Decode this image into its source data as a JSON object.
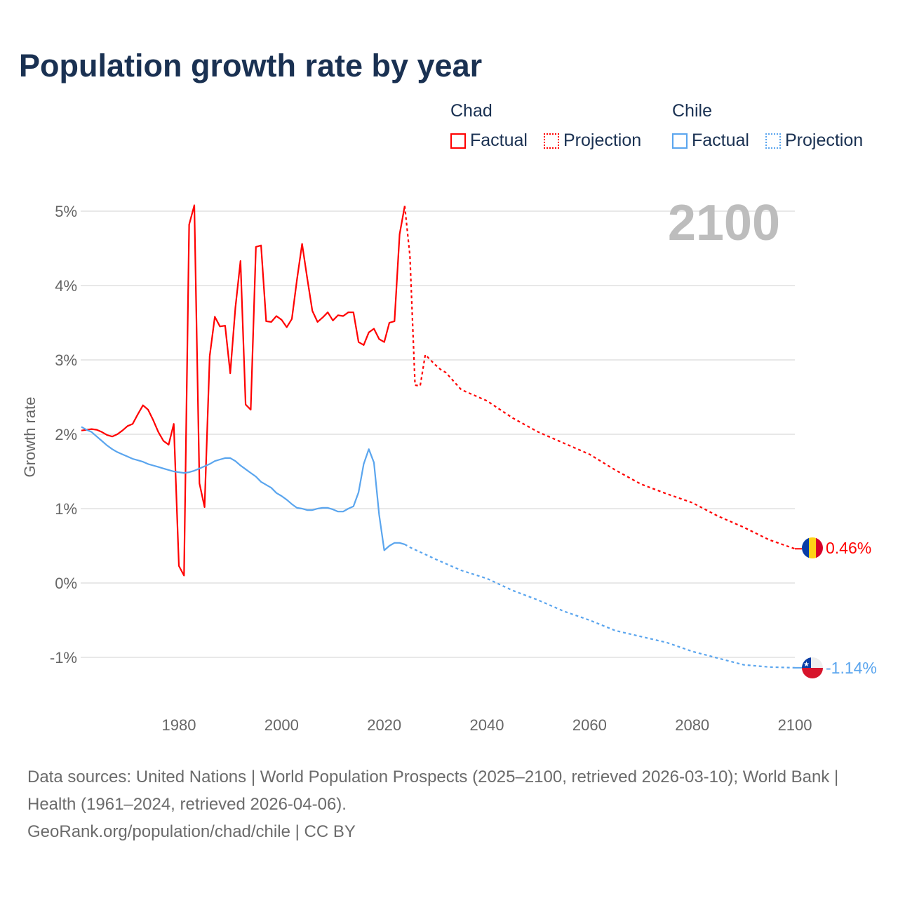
{
  "title": "Population growth rate by year",
  "legend": {
    "groups": [
      {
        "name": "Chad",
        "factual": "Factual",
        "projection": "Projection",
        "color": "#ff0000"
      },
      {
        "name": "Chile",
        "factual": "Factual",
        "projection": "Projection",
        "color": "#5aa5ee"
      }
    ]
  },
  "footer": {
    "sources": "Data sources: United Nations | World Population Prospects (2025–2100, retrieved 2026-03-10); World Bank | Health (1961–2024, retrieved 2026-04-06).",
    "credit": "GeoRank.org/population/chad/chile | CC BY"
  },
  "chart_data": {
    "type": "line",
    "title": "Population growth rate by year",
    "xlabel": "",
    "ylabel": "Growth rate",
    "xlim": [
      1961,
      2100
    ],
    "ylim": [
      -1.4,
      5.2
    ],
    "x_ticks": [
      1980,
      2000,
      2020,
      2040,
      2060,
      2080,
      2100
    ],
    "y_ticks": [
      {
        "v": 5,
        "label": "5%"
      },
      {
        "v": 4,
        "label": "4%"
      },
      {
        "v": 3,
        "label": "3%"
      },
      {
        "v": 2,
        "label": "2%"
      },
      {
        "v": 1,
        "label": "1%"
      },
      {
        "v": 0,
        "label": "0%"
      },
      {
        "v": -1,
        "label": "-1%"
      }
    ],
    "year_label": "2100",
    "grid": true,
    "legend_position": "top-right",
    "series": [
      {
        "name": "Chad",
        "kind": "Factual",
        "color": "#ff0000",
        "x": [
          1961,
          1962,
          1963,
          1964,
          1965,
          1966,
          1967,
          1968,
          1969,
          1970,
          1971,
          1972,
          1973,
          1974,
          1975,
          1976,
          1977,
          1978,
          1979,
          1980,
          1981,
          1982,
          1983,
          1984,
          1985,
          1986,
          1987,
          1988,
          1989,
          1990,
          1991,
          1992,
          1993,
          1994,
          1995,
          1996,
          1997,
          1998,
          1999,
          2000,
          2001,
          2002,
          2003,
          2004,
          2005,
          2006,
          2007,
          2008,
          2009,
          2010,
          2011,
          2012,
          2013,
          2014,
          2015,
          2016,
          2017,
          2018,
          2019,
          2020,
          2021,
          2022,
          2023,
          2024
        ],
        "y": [
          2.05,
          2.06,
          2.07,
          2.06,
          2.03,
          1.99,
          1.97,
          2.0,
          2.05,
          2.11,
          2.14,
          2.27,
          2.39,
          2.33,
          2.19,
          2.03,
          1.91,
          1.86,
          2.14,
          0.23,
          0.1,
          4.82,
          5.08,
          1.34,
          1.02,
          3.05,
          3.58,
          3.45,
          3.46,
          2.82,
          3.7,
          4.33,
          2.4,
          2.33,
          4.52,
          4.54,
          3.52,
          3.51,
          3.59,
          3.54,
          3.44,
          3.55,
          4.08,
          4.56,
          4.1,
          3.66,
          3.51,
          3.57,
          3.64,
          3.53,
          3.6,
          3.59,
          3.64,
          3.64,
          3.24,
          3.2,
          3.37,
          3.42,
          3.28,
          3.24,
          3.5,
          3.52,
          4.69,
          5.07
        ]
      },
      {
        "name": "Chad",
        "kind": "Projection",
        "color": "#ff0000",
        "x": [
          2024,
          2025,
          2026,
          2027,
          2028,
          2029,
          2030,
          2031,
          2032,
          2035,
          2040,
          2045,
          2050,
          2055,
          2060,
          2065,
          2070,
          2075,
          2080,
          2085,
          2090,
          2095,
          2100
        ],
        "y": [
          5.07,
          4.4,
          2.66,
          2.65,
          3.07,
          3.0,
          2.93,
          2.87,
          2.83,
          2.6,
          2.45,
          2.22,
          2.03,
          1.88,
          1.73,
          1.52,
          1.33,
          1.2,
          1.08,
          0.9,
          0.75,
          0.58,
          0.46
        ]
      },
      {
        "name": "Chile",
        "kind": "Factual",
        "color": "#5aa5ee",
        "x": [
          1961,
          1962,
          1963,
          1964,
          1965,
          1966,
          1967,
          1968,
          1969,
          1970,
          1971,
          1972,
          1973,
          1974,
          1975,
          1976,
          1977,
          1978,
          1979,
          1980,
          1981,
          1982,
          1983,
          1984,
          1985,
          1986,
          1987,
          1988,
          1989,
          1990,
          1991,
          1992,
          1993,
          1994,
          1995,
          1996,
          1997,
          1998,
          1999,
          2000,
          2001,
          2002,
          2003,
          2004,
          2005,
          2006,
          2007,
          2008,
          2009,
          2010,
          2011,
          2012,
          2013,
          2014,
          2015,
          2016,
          2017,
          2018,
          2019,
          2020,
          2021,
          2022,
          2023,
          2024
        ],
        "y": [
          2.1,
          2.06,
          2.03,
          1.97,
          1.91,
          1.85,
          1.8,
          1.76,
          1.73,
          1.7,
          1.67,
          1.65,
          1.63,
          1.6,
          1.58,
          1.56,
          1.54,
          1.52,
          1.5,
          1.49,
          1.48,
          1.49,
          1.51,
          1.54,
          1.57,
          1.6,
          1.64,
          1.66,
          1.68,
          1.68,
          1.64,
          1.58,
          1.53,
          1.48,
          1.43,
          1.36,
          1.32,
          1.28,
          1.21,
          1.17,
          1.12,
          1.06,
          1.01,
          1.0,
          0.98,
          0.98,
          1.0,
          1.01,
          1.01,
          0.99,
          0.96,
          0.96,
          1.0,
          1.03,
          1.22,
          1.6,
          1.8,
          1.62,
          0.92,
          0.44,
          0.5,
          0.54,
          0.54,
          0.52
        ]
      },
      {
        "name": "Chile",
        "kind": "Projection",
        "color": "#5aa5ee",
        "x": [
          2024,
          2025,
          2030,
          2035,
          2040,
          2045,
          2050,
          2055,
          2060,
          2065,
          2070,
          2075,
          2080,
          2085,
          2090,
          2095,
          2100
        ],
        "y": [
          0.52,
          0.48,
          0.32,
          0.17,
          0.06,
          -0.1,
          -0.23,
          -0.38,
          -0.5,
          -0.64,
          -0.72,
          -0.8,
          -0.92,
          -1.01,
          -1.1,
          -1.13,
          -1.14
        ]
      }
    ],
    "end_labels": [
      {
        "name": "Chad",
        "label": "0.46%",
        "value": 0.46,
        "color": "#ff0000"
      },
      {
        "name": "Chile",
        "label": "-1.14%",
        "value": -1.14,
        "color": "#5aa5ee"
      }
    ]
  }
}
